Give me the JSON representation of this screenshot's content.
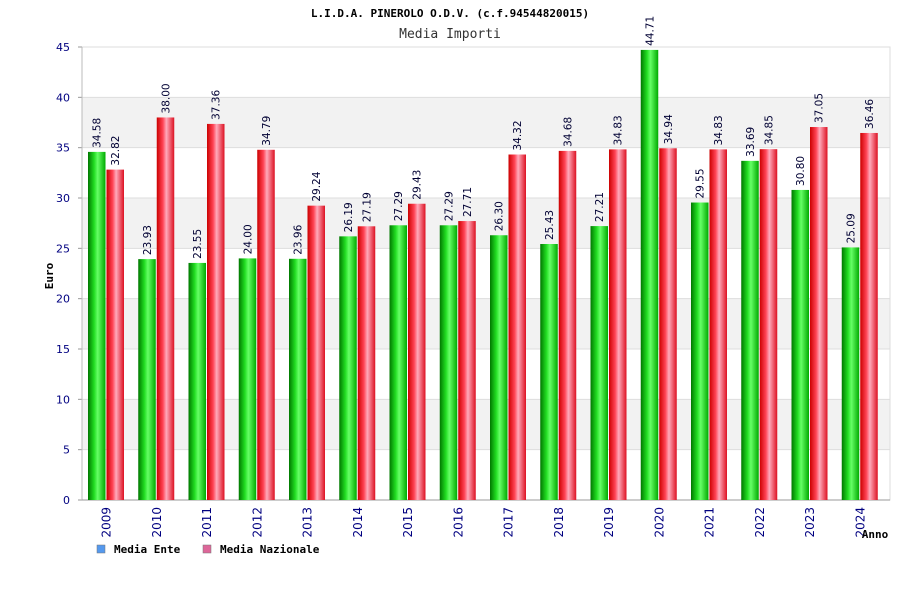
{
  "chart_data": {
    "type": "bar",
    "title": "L.I.D.A. PINEROLO O.D.V. (c.f.94544820015)",
    "subtitle": "Media Importi",
    "ylabel": "Euro",
    "xlabel": "Anno",
    "ylim": [
      0,
      45
    ],
    "yticks": [
      0,
      5,
      10,
      15,
      20,
      25,
      30,
      35,
      40,
      45
    ],
    "grid": true,
    "legend_position": "bottom-left",
    "categories": [
      "2009",
      "2010",
      "2011",
      "2012",
      "2013",
      "2014",
      "2015",
      "2016",
      "2017",
      "2018",
      "2019",
      "2020",
      "2021",
      "2022",
      "2023",
      "2024"
    ],
    "series": [
      {
        "name": "Media Ente",
        "color": "#00bb00",
        "legend_color": "#5599ee",
        "values": [
          34.58,
          23.93,
          23.55,
          24.0,
          23.96,
          26.19,
          27.29,
          27.29,
          26.3,
          25.43,
          27.21,
          44.71,
          29.55,
          33.69,
          30.8,
          25.09
        ],
        "labels": [
          "34.58",
          "23.93",
          "23.55",
          "24.00",
          "23.96",
          "26.19",
          "27.29",
          "27.29",
          "26.30",
          "25.43",
          "27.21",
          "44.71",
          "29.55",
          "33.69",
          "30.80",
          "25.09"
        ]
      },
      {
        "name": "Media Nazionale",
        "color": "#ee1122",
        "legend_color": "#dd6699",
        "values": [
          32.82,
          38.0,
          37.36,
          34.79,
          29.24,
          27.19,
          29.43,
          27.71,
          34.32,
          34.68,
          34.83,
          34.94,
          34.83,
          34.85,
          37.05,
          36.46
        ],
        "labels": [
          "32.82",
          "38.00",
          "37.36",
          "34.79",
          "29.24",
          "27.19",
          "29.43",
          "27.71",
          "34.32",
          "34.68",
          "34.83",
          "34.94",
          "34.83",
          "34.85",
          "37.05",
          "36.46"
        ]
      }
    ]
  }
}
